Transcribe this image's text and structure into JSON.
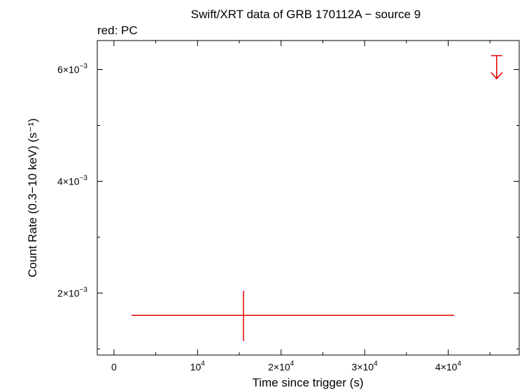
{
  "chart_data": {
    "type": "scatter",
    "title": "Swift/XRT data of GRB 170112A − source 9",
    "subtitle": "red: PC",
    "xlabel": "Time since trigger (s)",
    "ylabel": "Count Rate (0.3−10 keV) (s⁻¹)",
    "xlim": [
      -2000,
      48500
    ],
    "ylim": [
      0.00089,
      0.00652
    ],
    "grid": false,
    "color": "#e00000",
    "x_ticks": [
      {
        "value": 0,
        "label": "0"
      },
      {
        "value": 10000,
        "label": "10⁴"
      },
      {
        "value": 20000,
        "label": "2×10⁴"
      },
      {
        "value": 30000,
        "label": "3×10⁴"
      },
      {
        "value": 40000,
        "label": "4×10⁴"
      }
    ],
    "y_ticks": [
      {
        "value": 0.002,
        "label": "2×10⁻³"
      },
      {
        "value": 0.004,
        "label": "4×10⁻³"
      },
      {
        "value": 0.006,
        "label": "6×10⁻³"
      }
    ],
    "series": [
      {
        "points": [
          {
            "x": 15500,
            "xerr_lo": 13400,
            "xerr_hi": 25200,
            "y": 0.0016,
            "yerr_lo": 0.00046,
            "yerr_hi": 0.00044
          }
        ],
        "upper_limits": [
          {
            "x": 45800,
            "y": 0.00625
          }
        ]
      }
    ]
  }
}
